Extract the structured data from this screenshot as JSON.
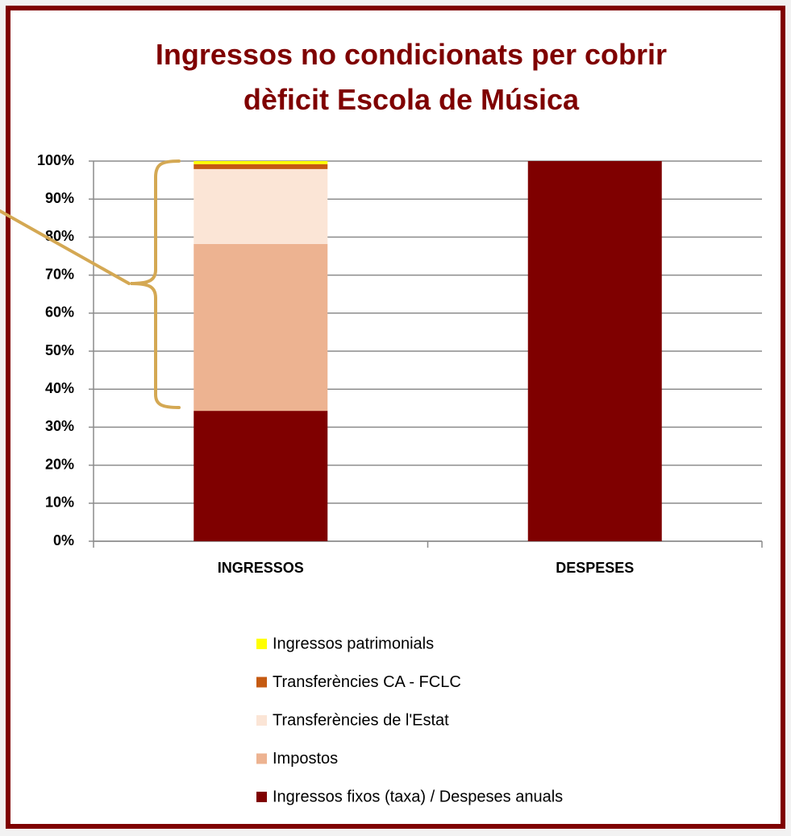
{
  "chart_data": {
    "type": "stacked_bar",
    "title": "Ingressos no condicionats per cobrir dèficit Escola de Música",
    "categories": [
      "INGRESSOS",
      "DESPESES"
    ],
    "series": [
      {
        "name": "Ingressos fixos (taxa) / Despeses anuals",
        "color": "#7f0000",
        "values": [
          34.3,
          100
        ]
      },
      {
        "name": "Impostos",
        "color": "#edb391",
        "values": [
          43.9,
          0
        ]
      },
      {
        "name": "Transferències de l'Estat",
        "color": "#fbe5d6",
        "values": [
          19.7,
          0
        ]
      },
      {
        "name": "Transferències CA - FCLC",
        "color": "#c55a11",
        "values": [
          1.3,
          0
        ]
      },
      {
        "name": "Ingressos patrimonials",
        "color": "#ffff00",
        "values": [
          0.8,
          0
        ]
      }
    ],
    "ylim": [
      0,
      100
    ],
    "yticks": [
      {
        "value": 0,
        "label": "0%"
      },
      {
        "value": 10,
        "label": "10%"
      },
      {
        "value": 20,
        "label": "20%"
      },
      {
        "value": 30,
        "label": "30%"
      },
      {
        "value": 40,
        "label": "40%"
      },
      {
        "value": 50,
        "label": "50%"
      },
      {
        "value": 60,
        "label": "60%"
      },
      {
        "value": 70,
        "label": "70%"
      },
      {
        "value": 80,
        "label": "80%"
      },
      {
        "value": 90,
        "label": "90%"
      },
      {
        "value": 100,
        "label": "100%"
      }
    ],
    "grid": true
  }
}
